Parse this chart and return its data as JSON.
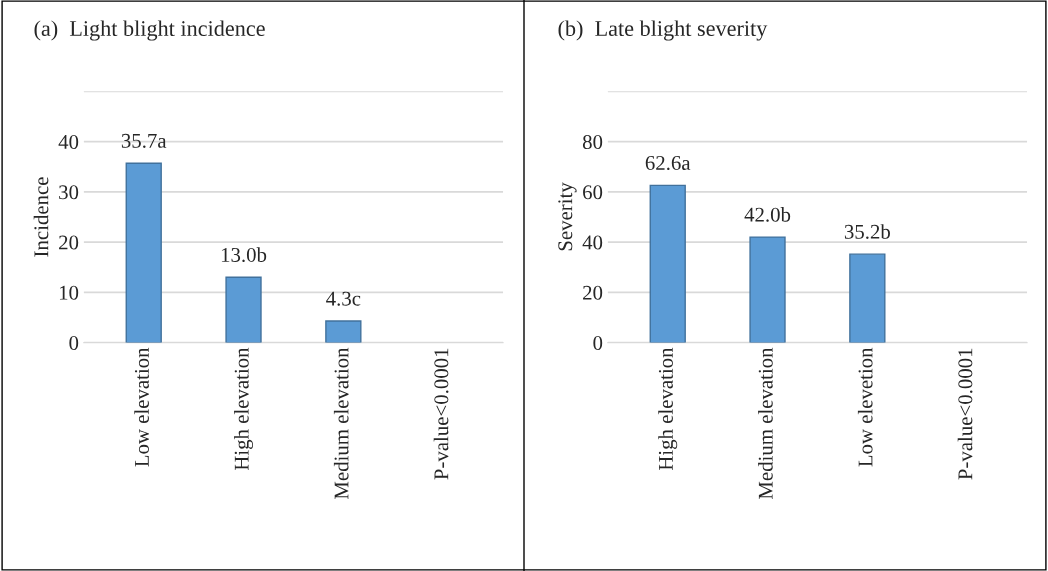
{
  "chart_data": [
    {
      "type": "bar",
      "title": "(a)  Light blight incidence",
      "ylabel": "Incidence",
      "categories": [
        "Low elevation",
        "High elevation",
        "Medium elevation",
        "P-value<0.0001"
      ],
      "values": [
        35.7,
        13.0,
        4.3,
        null
      ],
      "value_labels": [
        "35.7a",
        "13.0b",
        "4.3c",
        null
      ],
      "color": "#5b9bd5",
      "ylim": [
        0,
        50
      ],
      "yticks": [
        0,
        10,
        20,
        30,
        40,
        {
          "value": 50,
          "label": null
        }
      ],
      "grid": "y"
    },
    {
      "type": "bar",
      "title": "(b)  Late blight severity",
      "ylabel": "Severity",
      "categories": [
        "High elevation",
        "Medium elevation",
        "Low elevetion",
        "P-value<0.0001"
      ],
      "values": [
        62.6,
        42.0,
        35.2,
        null
      ],
      "value_labels": [
        "62.6a",
        "42.0b",
        "35.2b",
        null
      ],
      "color": "#5b9bd5",
      "ylim": [
        0,
        100
      ],
      "yticks": [
        0,
        20,
        40,
        60,
        80,
        {
          "value": 100,
          "label": null
        }
      ],
      "grid": "y"
    }
  ]
}
